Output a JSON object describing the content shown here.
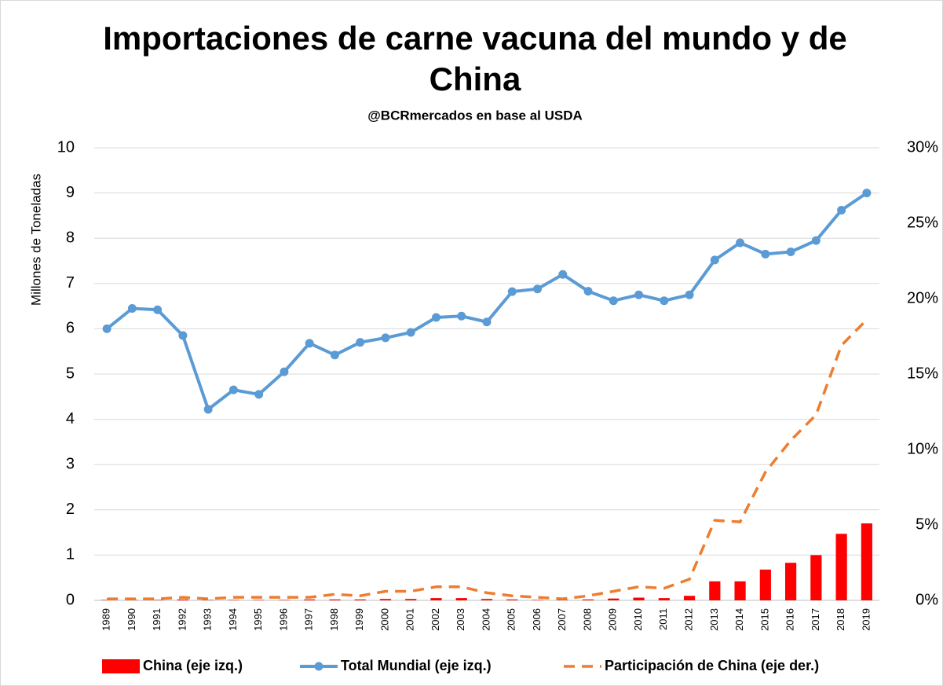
{
  "chart_data": {
    "type": "bar-line",
    "title": [
      "Importaciones de carne vacuna del mundo y de",
      "China"
    ],
    "subtitle": "@BCRmercados en base al USDA",
    "y_label": "Millones de Toneladas",
    "categories": [
      "1989",
      "1990",
      "1991",
      "1992",
      "1993",
      "1994",
      "1995",
      "1996",
      "1997",
      "1998",
      "1999",
      "2000",
      "2001",
      "2002",
      "2003",
      "2004",
      "2005",
      "2006",
      "2007",
      "2008",
      "2009",
      "2010",
      "2011",
      "2012",
      "2013",
      "2014",
      "2015",
      "2016",
      "2017",
      "2018",
      "2019"
    ],
    "series": [
      {
        "name": "China (eje izq.)",
        "type": "bar",
        "color": "#ff0000",
        "axis": "y",
        "values": [
          0.01,
          0.01,
          0.01,
          0.02,
          0.01,
          0.01,
          0.01,
          0.01,
          0.02,
          0.02,
          0.02,
          0.03,
          0.03,
          0.05,
          0.05,
          0.03,
          0.02,
          0.01,
          0.01,
          0.02,
          0.04,
          0.06,
          0.05,
          0.1,
          0.42,
          0.42,
          0.68,
          0.83,
          1.0,
          1.47,
          1.7
        ]
      },
      {
        "name": "Total Mundial (eje izq.)",
        "type": "line",
        "color": "#5b9bd5",
        "axis": "y",
        "values": [
          6.0,
          6.45,
          6.42,
          5.85,
          4.22,
          4.65,
          4.55,
          5.05,
          5.68,
          5.42,
          5.7,
          5.8,
          5.92,
          6.25,
          6.28,
          6.15,
          6.82,
          6.88,
          7.2,
          6.83,
          6.62,
          6.75,
          6.62,
          6.75,
          7.52,
          7.9,
          7.65,
          7.7,
          7.95,
          8.62,
          9.0
        ]
      },
      {
        "name": "Participación de China (eje der.)",
        "type": "dashed-line",
        "color": "#ed7d31",
        "axis": "y2",
        "values": [
          0.1,
          0.1,
          0.1,
          0.2,
          0.1,
          0.2,
          0.2,
          0.2,
          0.2,
          0.4,
          0.3,
          0.6,
          0.6,
          0.9,
          0.9,
          0.5,
          0.3,
          0.2,
          0.1,
          0.3,
          0.6,
          0.9,
          0.8,
          1.4,
          5.3,
          5.2,
          8.5,
          10.6,
          12.3,
          16.9,
          18.6
        ]
      }
    ],
    "ylim": [
      0,
      10
    ],
    "yticks": [
      0,
      1,
      2,
      3,
      4,
      5,
      6,
      7,
      8,
      9,
      10
    ],
    "y2lim": [
      0,
      30
    ],
    "y2ticks": [
      {
        "value": 0,
        "label": "0%"
      },
      {
        "value": 5,
        "label": "5%"
      },
      {
        "value": 10,
        "label": "10%"
      },
      {
        "value": 15,
        "label": "15%"
      },
      {
        "value": 20,
        "label": "20%"
      },
      {
        "value": 25,
        "label": "25%"
      },
      {
        "value": 30,
        "label": "30%"
      }
    ],
    "grid": true,
    "legend": "bottom"
  }
}
